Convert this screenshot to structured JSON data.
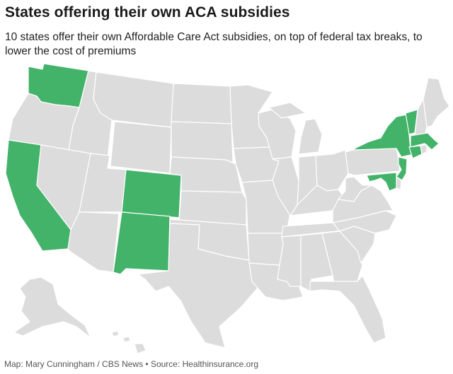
{
  "header": {
    "title": "States offering their own ACA subsidies",
    "subtitle": "10 states offer their own Affordable Care Act subsidies, on top of federal tax breaks, to lower the cost of premiums"
  },
  "map": {
    "colors": {
      "subsidy": "#43b36a",
      "other": "#dcdcdc"
    },
    "states_with_subsidies": [
      "WA",
      "CA",
      "CO",
      "NM",
      "NY",
      "VT",
      "MA",
      "CT",
      "NJ",
      "MD"
    ]
  },
  "footer": {
    "source": "Map: Mary Cunningham / CBS News • Source: Healthinsurance.org"
  }
}
